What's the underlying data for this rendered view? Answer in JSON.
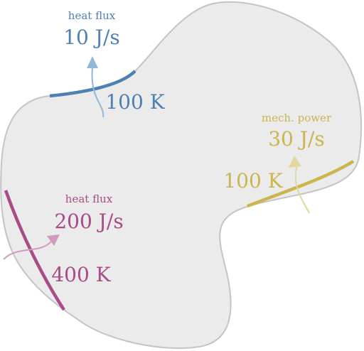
{
  "colors": {
    "body_fill": "#ebebeb",
    "body_stroke": "#c4c4c4",
    "blue": "#4e80b3",
    "blue_light": "#93b7d6",
    "magenta": "#a84b86",
    "magenta_light": "#d199bd",
    "yellow": "#cbb54c",
    "yellow_light": "#e2d79e"
  },
  "top_port": {
    "flux_label": "heat flux",
    "flux_value": "10 J/s",
    "temperature": "100 K"
  },
  "left_port": {
    "flux_label": "heat flux",
    "flux_value": "200 J/s",
    "temperature": "400 K"
  },
  "right_port": {
    "flux_label": "mech. power",
    "flux_value": "30 J/s",
    "temperature": "100 K"
  }
}
